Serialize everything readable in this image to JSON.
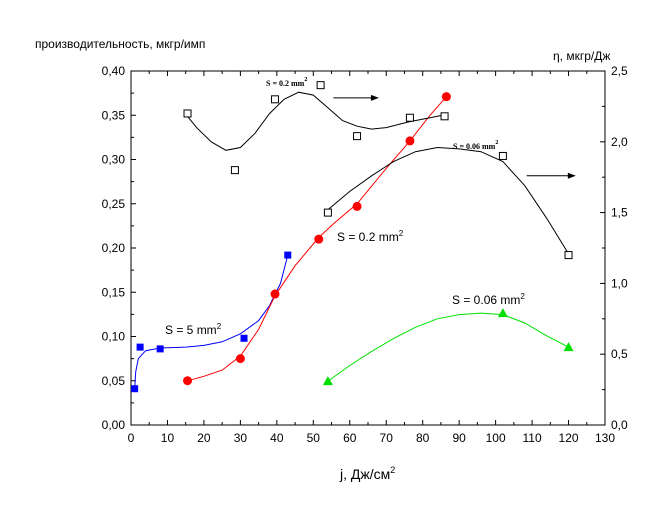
{
  "chart_data": {
    "type": "scatter",
    "left_axis": {
      "label": "производительность, мкгр/имп",
      "range": [
        0,
        0.4
      ],
      "ticks": [
        "0,00",
        "0,05",
        "0,10",
        "0,15",
        "0,20",
        "0,25",
        "0,30",
        "0,35",
        "0,40"
      ]
    },
    "right_axis": {
      "label": "η, мкгр/Дж",
      "range": [
        0,
        2.5
      ],
      "ticks": [
        "0,0",
        "0,5",
        "1,0",
        "1,5",
        "2,0",
        "2,5"
      ]
    },
    "x_axis": {
      "label": "j, Дж/см",
      "label_superscript": "2",
      "range": [
        0,
        130
      ],
      "ticks": [
        "0",
        "10",
        "20",
        "30",
        "40",
        "50",
        "60",
        "70",
        "80",
        "90",
        "100",
        "110",
        "120",
        "130"
      ]
    },
    "series": [
      {
        "label": "S = 5 mm",
        "label_superscript": "2",
        "axis": "left",
        "color": "#0000ff",
        "marker": "filled-square",
        "x": [
          1,
          2.5,
          8,
          31,
          43
        ],
        "y": [
          0.041,
          0.088,
          0.086,
          0.098,
          0.192
        ],
        "curve": [
          [
            1,
            0.04
          ],
          [
            1.3,
            0.06
          ],
          [
            2,
            0.075
          ],
          [
            4,
            0.084
          ],
          [
            8,
            0.087
          ],
          [
            15,
            0.088
          ],
          [
            20,
            0.09
          ],
          [
            25,
            0.094
          ],
          [
            30,
            0.103
          ],
          [
            35,
            0.118
          ],
          [
            38,
            0.135
          ],
          [
            41,
            0.16
          ],
          [
            43,
            0.192
          ]
        ]
      },
      {
        "label": "S = 0.2 mm",
        "label_superscript": "2",
        "axis": "left",
        "color": "#ff0000",
        "marker": "filled-circle",
        "x": [
          15.5,
          30,
          39.5,
          51.5,
          62,
          76.5,
          86.5
        ],
        "y": [
          0.05,
          0.075,
          0.148,
          0.21,
          0.247,
          0.321,
          0.371
        ],
        "curve": [
          [
            15.5,
            0.05
          ],
          [
            20,
            0.055
          ],
          [
            25,
            0.062
          ],
          [
            30,
            0.078
          ],
          [
            35,
            0.108
          ],
          [
            39.5,
            0.146
          ],
          [
            45,
            0.18
          ],
          [
            51.5,
            0.212
          ],
          [
            56,
            0.229
          ],
          [
            62,
            0.25
          ],
          [
            70,
            0.29
          ],
          [
            76.5,
            0.321
          ],
          [
            82,
            0.35
          ],
          [
            86.5,
            0.371
          ]
        ]
      },
      {
        "label": "S = 0.06 mm",
        "label_superscript": "2",
        "axis": "right",
        "color": "#00e000",
        "marker": "filled-triangle",
        "x": [
          54,
          102,
          120
        ],
        "y": [
          0.31,
          0.79,
          0.55
        ],
        "curve": [
          [
            54,
            0.31
          ],
          [
            60,
            0.42
          ],
          [
            66,
            0.52
          ],
          [
            72,
            0.61
          ],
          [
            78,
            0.69
          ],
          [
            84,
            0.75
          ],
          [
            90,
            0.78
          ],
          [
            96,
            0.79
          ],
          [
            102,
            0.78
          ],
          [
            108,
            0.72
          ],
          [
            114,
            0.63
          ],
          [
            120,
            0.55
          ]
        ]
      },
      {
        "label": "S = 0.2 mm",
        "label_superscript": "2",
        "axis": "right",
        "color": "#000000",
        "marker": "open-square",
        "x": [
          15.5,
          28.5,
          39.5,
          52,
          62,
          76.5,
          86
        ],
        "y": [
          2.2,
          1.8,
          2.3,
          2.4,
          2.04,
          2.17,
          2.18
        ],
        "curve": [
          [
            15.5,
            2.18
          ],
          [
            18,
            2.1
          ],
          [
            22,
            2.0
          ],
          [
            26,
            1.94
          ],
          [
            30,
            1.96
          ],
          [
            34,
            2.06
          ],
          [
            38,
            2.2
          ],
          [
            42,
            2.3
          ],
          [
            46,
            2.35
          ],
          [
            50,
            2.33
          ],
          [
            54,
            2.24
          ],
          [
            58,
            2.15
          ],
          [
            62,
            2.11
          ],
          [
            66,
            2.09
          ],
          [
            70,
            2.1
          ],
          [
            76,
            2.14
          ],
          [
            82,
            2.17
          ],
          [
            86,
            2.19
          ]
        ],
        "arrow_from": [
          55.5,
          2.31
        ],
        "arrow_to": [
          68,
          2.31
        ]
      },
      {
        "label": "S = 0.06 mm",
        "label_superscript": "2",
        "axis": "right",
        "color": "#000000",
        "marker": "open-square",
        "x": [
          54,
          102,
          120
        ],
        "y": [
          1.5,
          1.9,
          1.2
        ],
        "curve": [
          [
            54,
            1.52
          ],
          [
            60,
            1.65
          ],
          [
            66,
            1.76
          ],
          [
            72,
            1.86
          ],
          [
            78,
            1.93
          ],
          [
            84,
            1.96
          ],
          [
            90,
            1.95
          ],
          [
            96,
            1.93
          ],
          [
            102,
            1.86
          ],
          [
            108,
            1.69
          ],
          [
            114,
            1.46
          ],
          [
            120,
            1.21
          ]
        ],
        "arrow_from": [
          108.5,
          1.76
        ],
        "arrow_to": [
          122,
          1.76
        ]
      }
    ],
    "grid": false,
    "legend": "none"
  }
}
